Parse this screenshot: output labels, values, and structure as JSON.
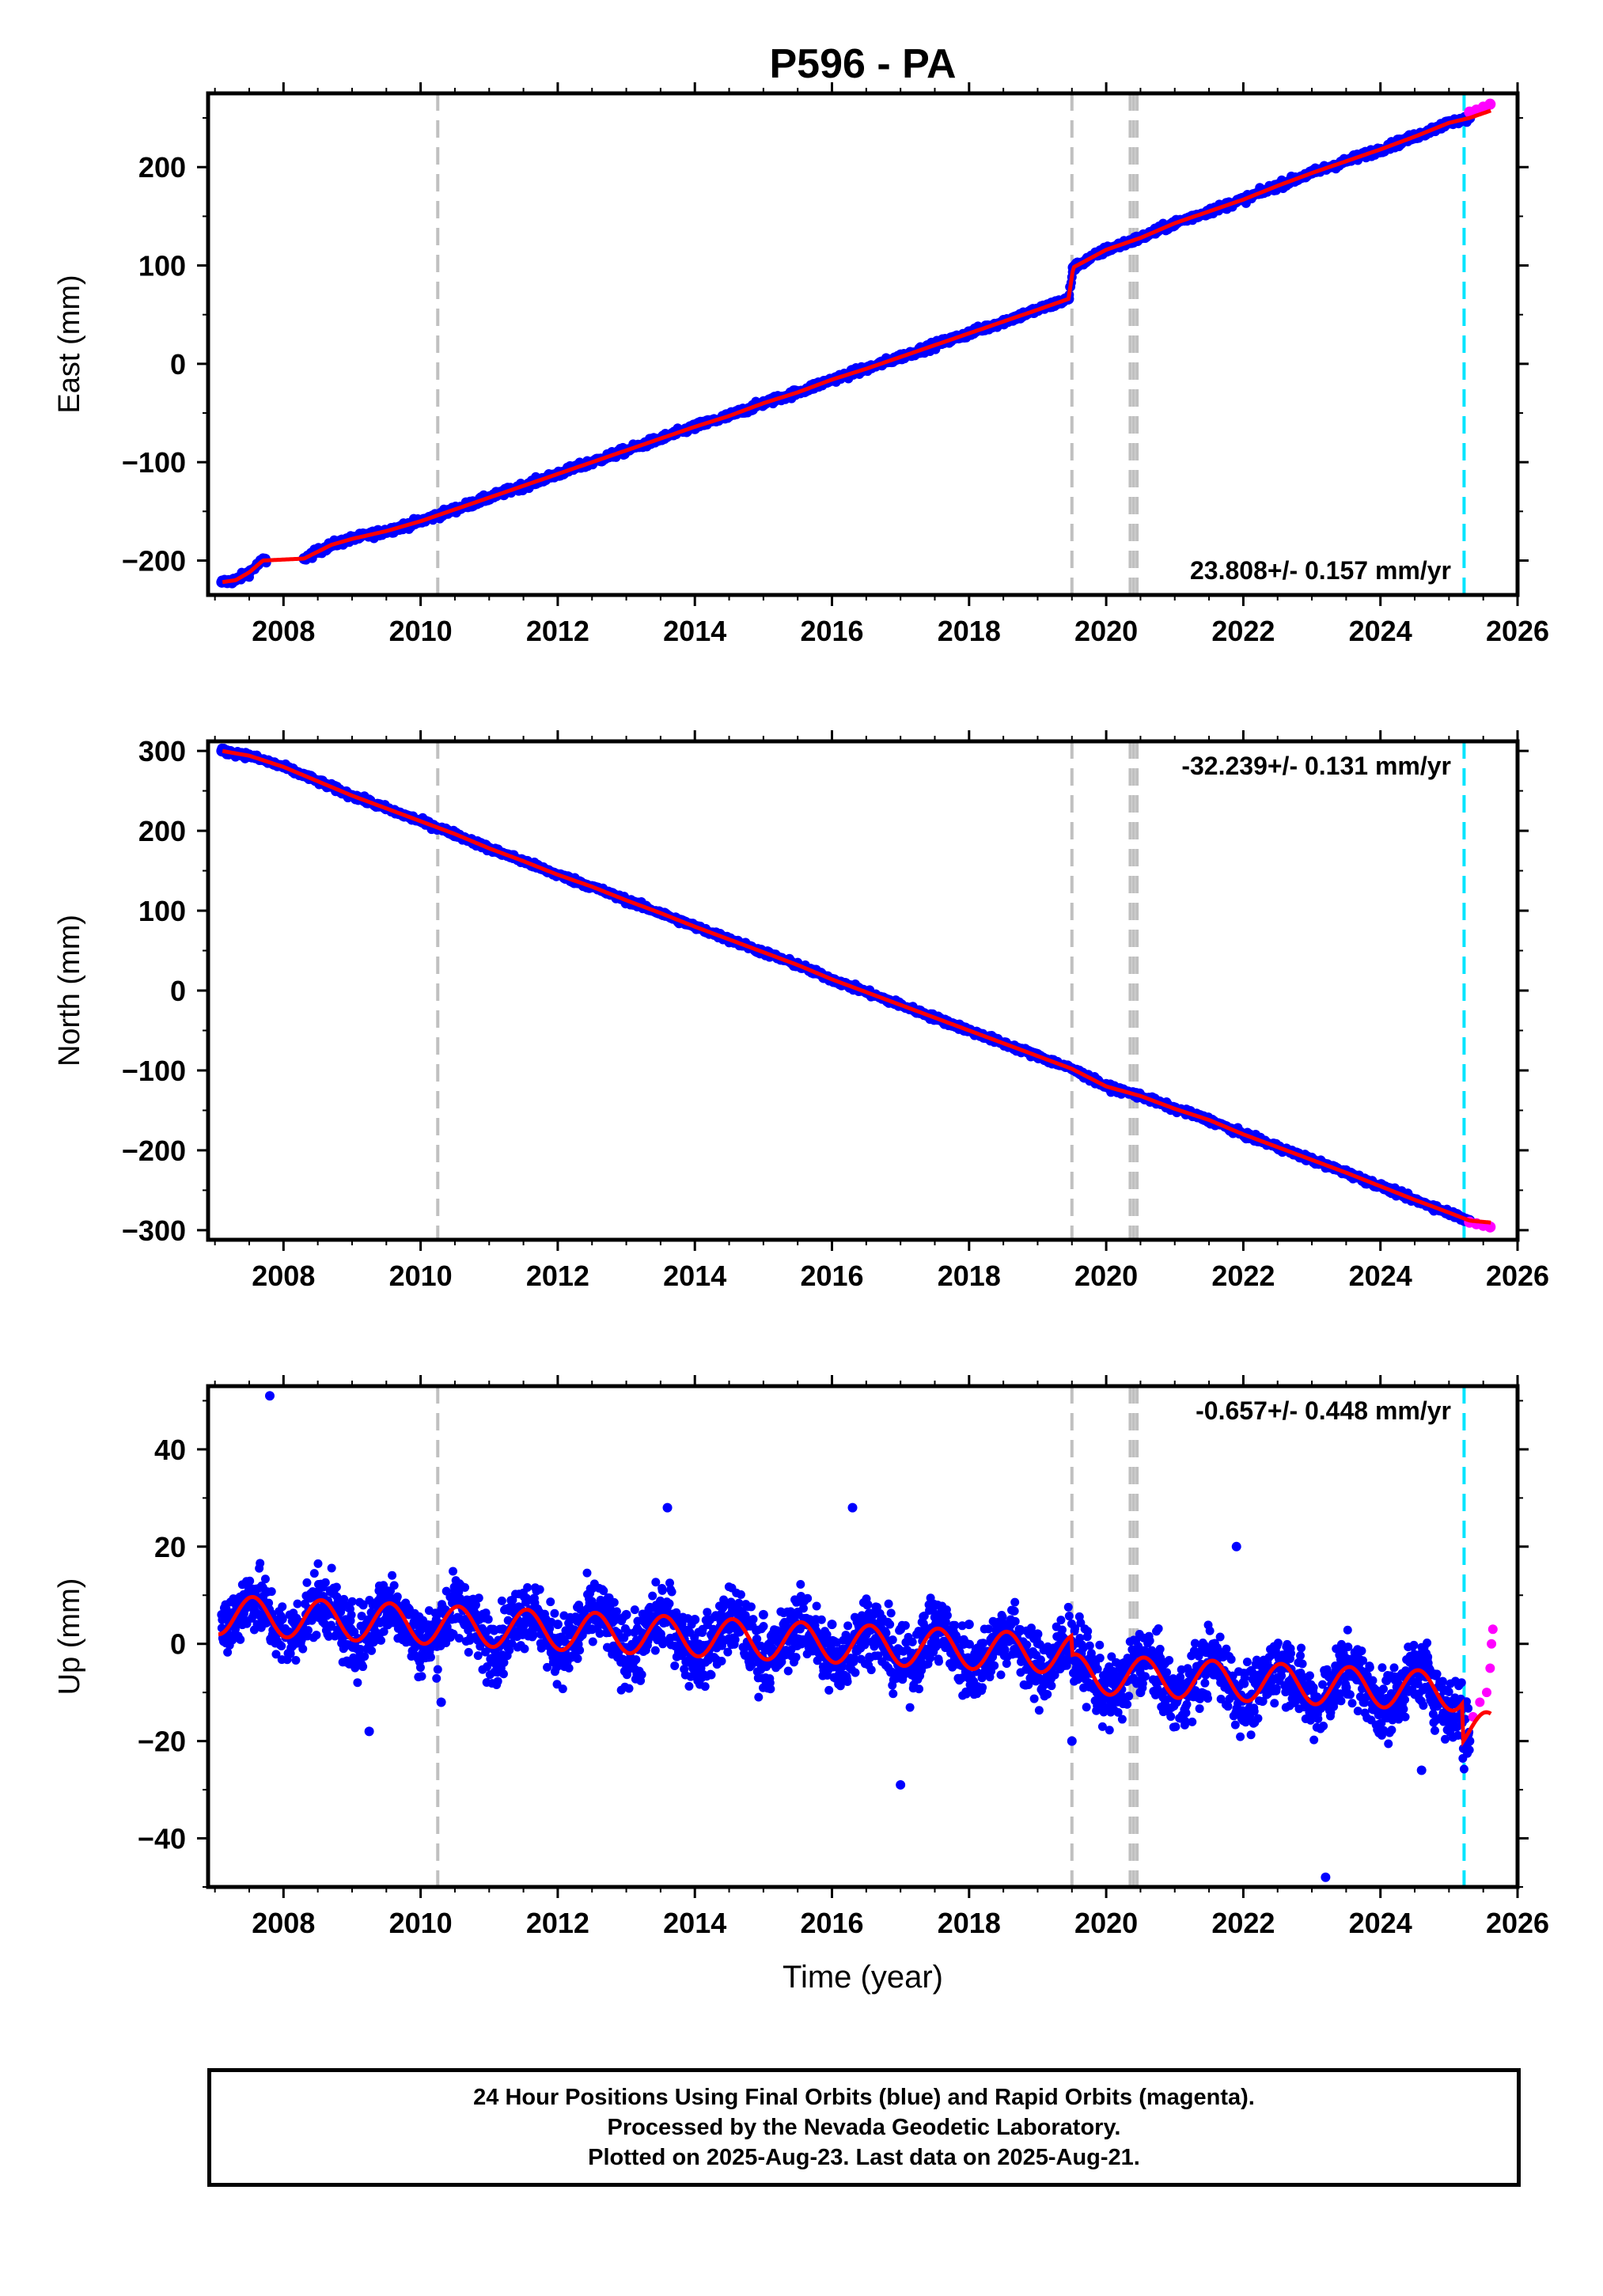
{
  "chart_data": [
    {
      "type": "scatter",
      "title": "P596 - PA",
      "ylabel": "East (mm)",
      "xlabel": "",
      "rate_label": "23.808+/- 0.157 mm/yr",
      "xlim": [
        2006.9,
        2026.0
      ],
      "ylim": [
        -235,
        275
      ],
      "x_ticks": [
        2008,
        2010,
        2012,
        2014,
        2016,
        2018,
        2020,
        2022,
        2024,
        2026
      ],
      "y_ticks": [
        -200,
        -100,
        0,
        100,
        200
      ],
      "y_tick_labels": [
        "−200",
        "−100",
        "0",
        "100",
        "200"
      ],
      "series": [
        {
          "color": "#0000ff",
          "style": "points",
          "x": [
            2007.1,
            2007.3,
            2007.5,
            2007.7,
            2008.3,
            2008.7,
            2009.0,
            2009.5,
            2010.0,
            2010.5,
            2011.0,
            2011.5,
            2012.0,
            2012.5,
            2013.0,
            2013.5,
            2014.0,
            2014.5,
            2015.0,
            2015.5,
            2016.0,
            2016.5,
            2017.0,
            2017.5,
            2018.0,
            2018.5,
            2019.0,
            2019.45,
            2019.52,
            2020.0,
            2020.5,
            2021.0,
            2021.5,
            2022.0,
            2022.5,
            2023.0,
            2023.5,
            2024.0,
            2024.5,
            2025.0,
            2025.3
          ],
          "y": [
            -222,
            -220,
            -212,
            -200,
            -198,
            -184,
            -178,
            -170,
            -160,
            -148,
            -136,
            -124,
            -112,
            -100,
            -88,
            -76,
            -64,
            -53,
            -40,
            -29,
            -16,
            -5,
            7,
            19,
            31,
            43,
            55,
            66,
            98,
            116,
            128,
            143,
            155,
            167,
            181,
            194,
            206,
            218,
            231,
            245,
            250
          ]
        },
        {
          "color": "#ff00ff",
          "style": "points",
          "x": [
            2025.3,
            2025.4,
            2025.5,
            2025.6
          ],
          "y": [
            256,
            258,
            261,
            264
          ]
        }
      ]
    },
    {
      "type": "scatter",
      "ylabel": "North (mm)",
      "xlabel": "",
      "rate_label": "-32.239+/- 0.131 mm/yr",
      "xlim": [
        2006.9,
        2026.0
      ],
      "ylim": [
        -312,
        312
      ],
      "x_ticks": [
        2008,
        2010,
        2012,
        2014,
        2016,
        2018,
        2020,
        2022,
        2024,
        2026
      ],
      "y_ticks": [
        -300,
        -200,
        -100,
        0,
        100,
        200,
        300
      ],
      "y_tick_labels": [
        "−300",
        "−200",
        "−100",
        "0",
        "100",
        "200",
        "300"
      ],
      "series": [
        {
          "color": "#0000ff",
          "style": "points",
          "x": [
            2007.1,
            2007.5,
            2008.0,
            2008.5,
            2009.0,
            2009.5,
            2010.0,
            2010.5,
            2011.0,
            2011.5,
            2012.0,
            2012.5,
            2013.0,
            2013.5,
            2014.0,
            2014.5,
            2015.0,
            2015.5,
            2016.0,
            2016.5,
            2017.0,
            2017.5,
            2018.0,
            2018.5,
            2019.0,
            2019.5,
            2020.0,
            2020.5,
            2021.0,
            2021.5,
            2022.0,
            2022.5,
            2023.0,
            2023.5,
            2024.0,
            2024.5,
            2025.0,
            2025.3
          ],
          "y": [
            300,
            294,
            280,
            262,
            244,
            228,
            212,
            196,
            178,
            162,
            145,
            130,
            113,
            97,
            80,
            64,
            48,
            32,
            14,
            -2,
            -18,
            -34,
            -50,
            -66,
            -82,
            -98,
            -120,
            -132,
            -148,
            -162,
            -180,
            -196,
            -212,
            -228,
            -245,
            -262,
            -278,
            -288
          ]
        },
        {
          "color": "#ff00ff",
          "style": "points",
          "x": [
            2025.3,
            2025.4,
            2025.5,
            2025.6
          ],
          "y": [
            -290,
            -292,
            -294,
            -296
          ]
        }
      ]
    },
    {
      "type": "scatter",
      "ylabel": "Up (mm)",
      "xlabel": "Time (year)",
      "rate_label": "-0.657+/- 0.448 mm/yr",
      "xlim": [
        2006.9,
        2026.0
      ],
      "ylim": [
        -50,
        53
      ],
      "x_ticks": [
        2008,
        2010,
        2012,
        2014,
        2016,
        2018,
        2020,
        2022,
        2024,
        2026
      ],
      "y_ticks": [
        -40,
        -20,
        0,
        20,
        40
      ],
      "y_tick_labels": [
        "−40",
        "−20",
        "0",
        "20",
        "40"
      ],
      "series": [
        {
          "color": "#0000ff",
          "style": "points",
          "x": [
            2007.1,
            2007.4,
            2007.7,
            2008.4,
            2008.8,
            2009.2,
            2009.6,
            2010.0,
            2010.4,
            2010.8,
            2011.2,
            2011.6,
            2012.0,
            2012.5,
            2013.0,
            2013.5,
            2014.0,
            2014.5,
            2015.0,
            2015.5,
            2016.0,
            2016.5,
            2017.0,
            2017.5,
            2018.0,
            2018.5,
            2019.0,
            2019.6,
            2020.0,
            2020.5,
            2021.0,
            2021.5,
            2022.0,
            2022.5,
            2023.0,
            2023.5,
            2024.0,
            2024.5,
            2025.0,
            2025.3,
            2007.8,
            2009.25,
            2010.3,
            2013.6,
            2016.3,
            2017.0,
            2019.5,
            2021.9,
            2023.2,
            2024.6
          ],
          "y": [
            6,
            4,
            9,
            5,
            8,
            3,
            7,
            4,
            2,
            8,
            3,
            6,
            4,
            3,
            6,
            2,
            5,
            3,
            6,
            1,
            4,
            2,
            3,
            1,
            4,
            -1,
            2,
            -6,
            -8,
            -10,
            -9,
            -5,
            -8,
            -7,
            -12,
            -9,
            -11,
            -8,
            -13,
            -20,
            51,
            -18,
            -12,
            28,
            28,
            -29,
            -20,
            20,
            -48,
            -26
          ]
        },
        {
          "color": "#ff00ff",
          "style": "points",
          "x": [
            2025.35,
            2025.45,
            2025.55,
            2025.6,
            2025.62,
            2025.64
          ],
          "y": [
            -15,
            -12,
            -10,
            -5,
            0,
            3
          ]
        }
      ]
    }
  ],
  "footer": {
    "line1": "24 Hour Positions Using Final Orbits (blue) and Rapid Orbits (magenta).",
    "line2": "Processed by the Nevada Geodetic Laboratory.",
    "line3": "Plotted on 2025-Aug-23. Last data on 2025-Aug-21."
  },
  "colors": {
    "final_orbits": "#0000ff",
    "rapid_orbits": "#ff00ff",
    "model_fit": "#ff0000",
    "event_lines": "#c0c0c0",
    "antenna_change_line": "#00e5ff"
  }
}
